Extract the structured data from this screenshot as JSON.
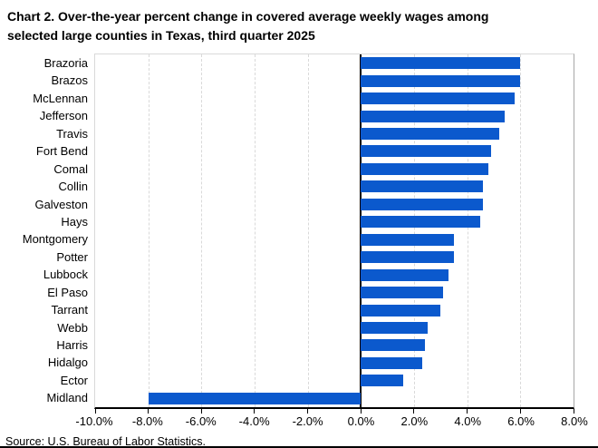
{
  "title": {
    "line1": "Chart 2. Over-the-year percent change in covered average weekly wages among",
    "line2": "selected large counties in Texas, third quarter 2025"
  },
  "source": "Source: U.S. Bureau of Labor Statistics.",
  "colors": {
    "bar": "#0b59cd",
    "gridline": "#d9d9d9",
    "plot_border": "#d9d9d9",
    "axis": "#000000",
    "background": "#ffffff",
    "text": "#000000"
  },
  "chart_data": {
    "type": "bar",
    "orientation": "horizontal",
    "title": "Chart 2. Over-the-year percent change in covered average weekly wages among selected large counties in Texas, third quarter 2025",
    "xlabel": "",
    "ylabel": "",
    "value_unit": "percent",
    "xlim": [
      -10,
      8
    ],
    "grid": "vertical-dashed",
    "legend": "none",
    "categories": [
      "Brazoria",
      "Brazos",
      "McLennan",
      "Jefferson",
      "Travis",
      "Fort Bend",
      "Comal",
      "Collin",
      "Galveston",
      "Hays",
      "Montgomery",
      "Potter",
      "Lubbock",
      "El Paso",
      "Tarrant",
      "Webb",
      "Harris",
      "Hidalgo",
      "Ector",
      "Midland"
    ],
    "values": [
      6.0,
      6.0,
      5.8,
      5.4,
      5.2,
      4.9,
      4.8,
      4.6,
      4.6,
      4.5,
      3.5,
      3.5,
      3.3,
      3.1,
      3.0,
      2.5,
      2.4,
      2.3,
      1.6,
      -8.0
    ],
    "tick_values": [
      -10,
      -8,
      -6,
      -4,
      -2,
      0,
      2,
      4,
      6,
      8
    ],
    "tick_labels": [
      "-10.0%",
      "-8.0%",
      "-6.0%",
      "-4.0%",
      "-2.0%",
      "0.0%",
      "2.0%",
      "4.0%",
      "6.0%",
      "8.0%"
    ]
  }
}
